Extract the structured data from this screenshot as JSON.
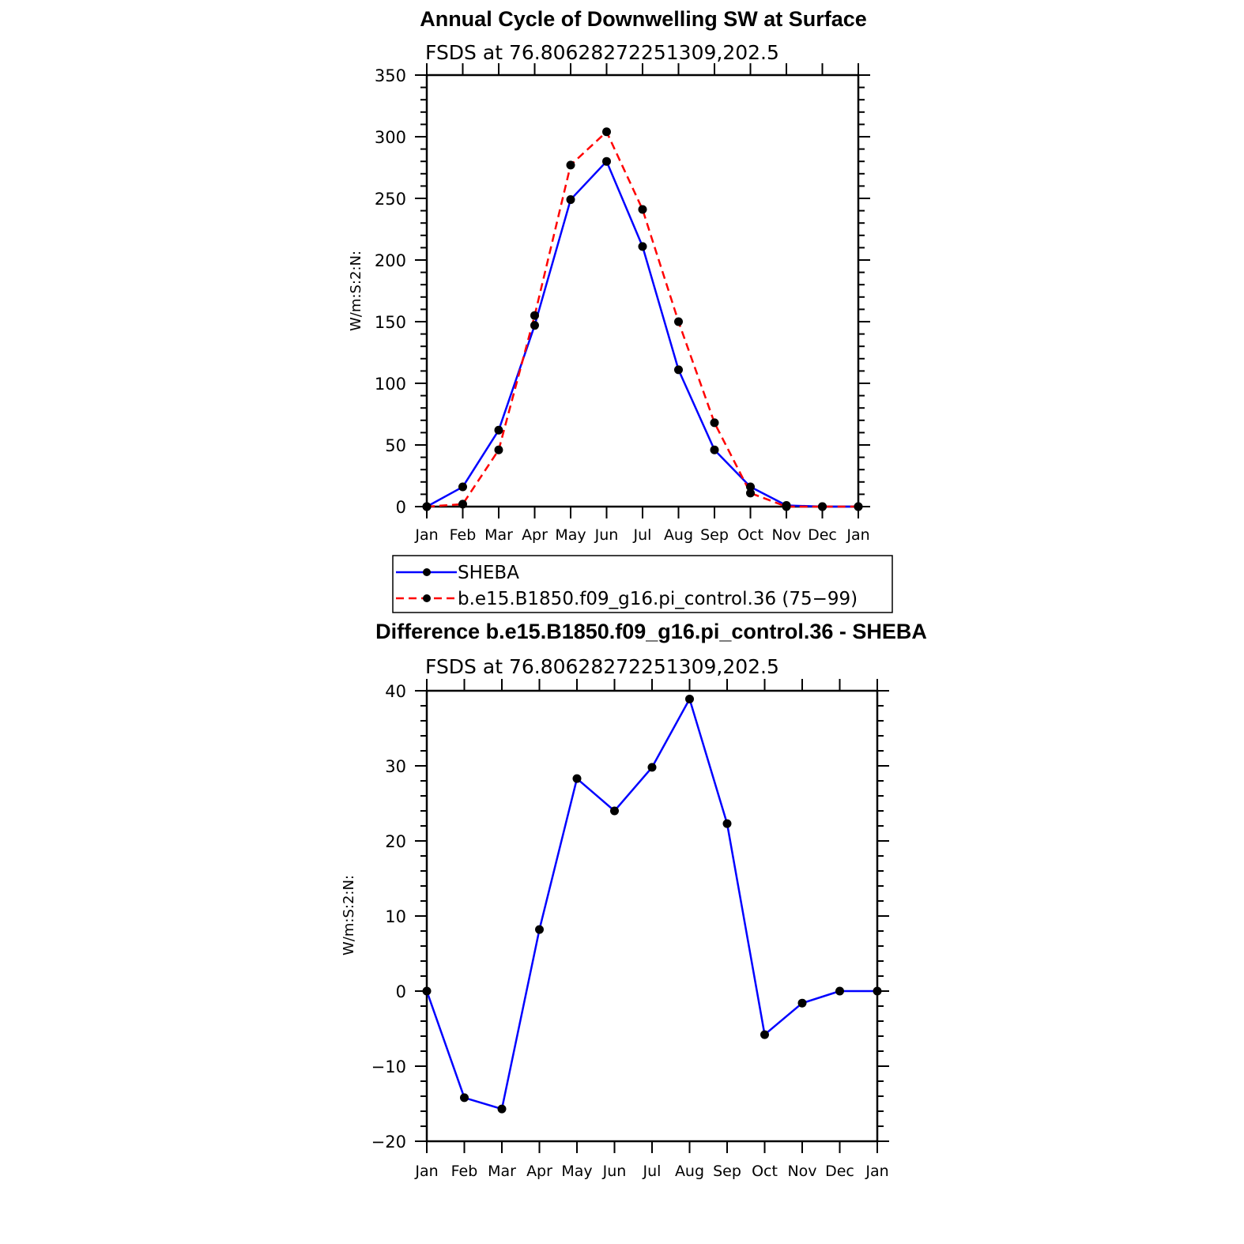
{
  "chart_data": [
    {
      "type": "line",
      "title": "Annual Cycle of Downwelling SW at Surface",
      "subtitle": "FSDS at 76.80628272251309,202.5",
      "ylabel": "W/m:S:2:N:",
      "ylim": [
        0,
        350
      ],
      "yticks": [
        0,
        50,
        100,
        150,
        200,
        250,
        300,
        350
      ],
      "categories": [
        "Jan",
        "Feb",
        "Mar",
        "Apr",
        "May",
        "Jun",
        "Jul",
        "Aug",
        "Sep",
        "Oct",
        "Nov",
        "Dec",
        "Jan"
      ],
      "series": [
        {
          "name": "SHEBA",
          "color": "#0000ff",
          "dash": "solid",
          "values": [
            0,
            16,
            62,
            147,
            249,
            280,
            211,
            111,
            46,
            16,
            1,
            0,
            0
          ]
        },
        {
          "name": "b.e15.B1850.f09_g16.pi_control.36 (75−99)",
          "color": "#ff0000",
          "dash": "dashed",
          "values": [
            0,
            2,
            46,
            155,
            277,
            304,
            241,
            150,
            68,
            11,
            0,
            0,
            0
          ]
        }
      ],
      "legend": "below"
    },
    {
      "type": "line",
      "title": "Difference b.e15.B1850.f09_g16.pi_control.36 - SHEBA",
      "subtitle": "FSDS at 76.80628272251309,202.5",
      "ylabel": "W/m:S:2:N:",
      "ylim": [
        -20,
        40
      ],
      "yticks": [
        -20,
        -10,
        0,
        10,
        20,
        30,
        40
      ],
      "yticklabels": [
        "−20",
        "−10",
        "0",
        "10",
        "20",
        "30",
        "40"
      ],
      "categories": [
        "Jan",
        "Feb",
        "Mar",
        "Apr",
        "May",
        "Jun",
        "Jul",
        "Aug",
        "Sep",
        "Oct",
        "Nov",
        "Dec",
        "Jan"
      ],
      "series": [
        {
          "color": "#0000ff",
          "dash": "solid",
          "values": [
            0,
            -14.2,
            -15.7,
            8.2,
            28.3,
            24.0,
            29.8,
            38.9,
            22.3,
            -5.8,
            -1.6,
            0,
            0
          ]
        }
      ]
    }
  ]
}
